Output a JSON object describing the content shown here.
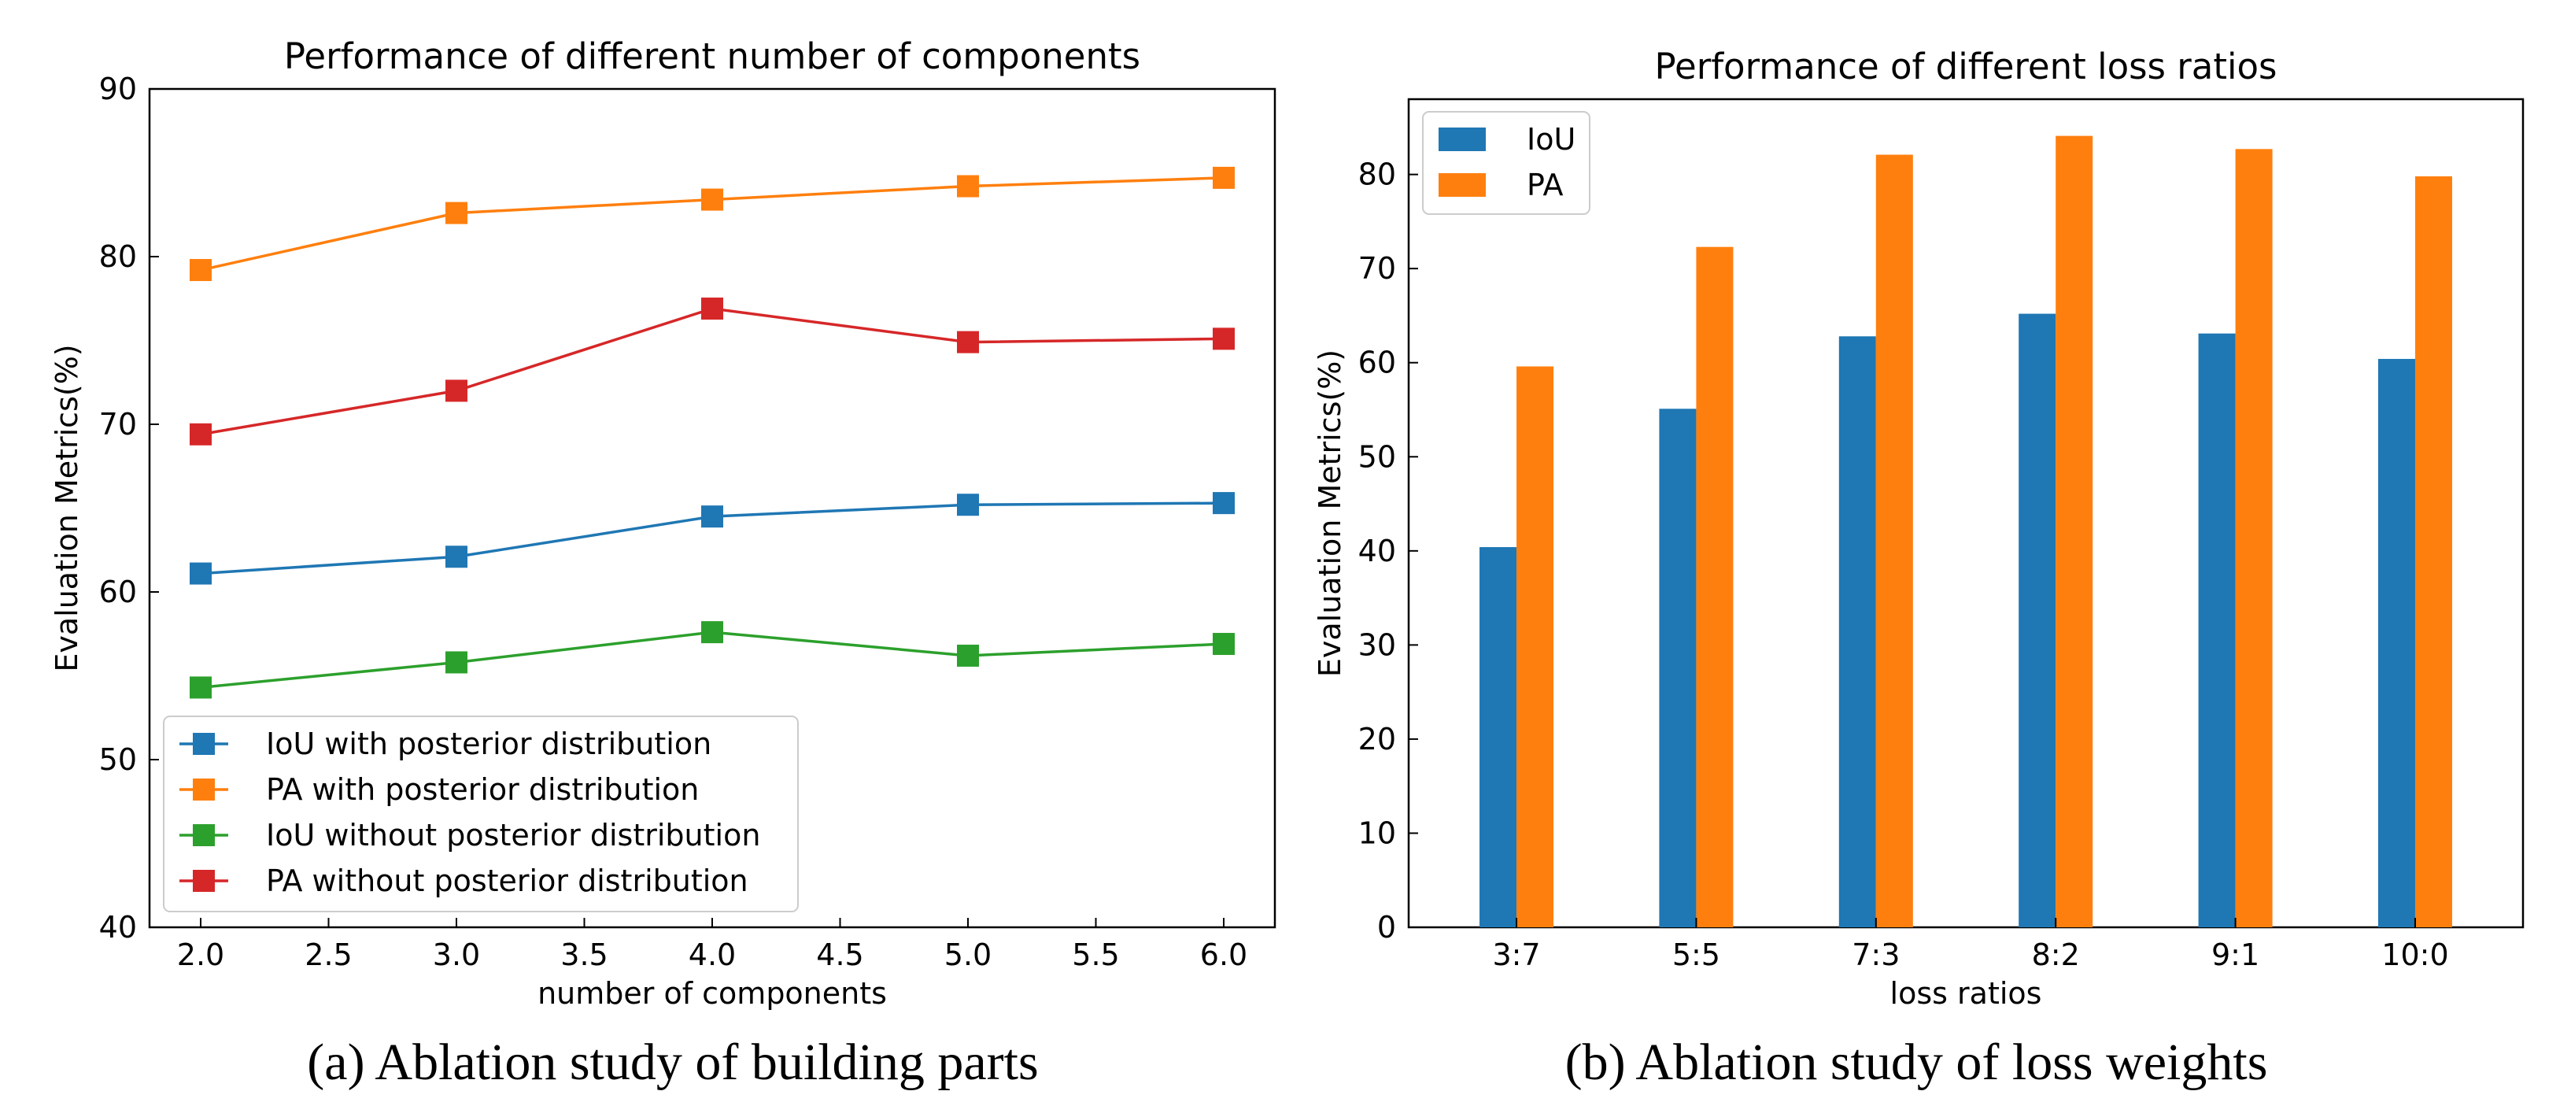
{
  "captions": {
    "a": "(a) Ablation study of building parts",
    "b": "(b) Ablation study of loss weights"
  },
  "chart_data": [
    {
      "type": "line",
      "title": "Performance of different number of components",
      "xlabel": "number of components",
      "ylabel": "Evaluation Metrics(%)",
      "xlim": [
        1.8,
        6.2
      ],
      "ylim": [
        40,
        90
      ],
      "xticks": [
        "2.0",
        "2.5",
        "3.0",
        "3.5",
        "4.0",
        "4.5",
        "5.0",
        "5.5",
        "6.0"
      ],
      "yticks": [
        "40",
        "50",
        "60",
        "70",
        "80",
        "90"
      ],
      "grid": false,
      "legend_position": "lower-left",
      "x": [
        2,
        3,
        4,
        5,
        6
      ],
      "series": [
        {
          "name": "IoU with posterior distribution",
          "color": "#1f77b4",
          "marker": "square",
          "values": [
            61.1,
            62.1,
            64.5,
            65.2,
            65.3
          ]
        },
        {
          "name": "PA with posterior distribution",
          "color": "#ff7f0e",
          "marker": "square",
          "values": [
            79.2,
            82.6,
            83.4,
            84.2,
            84.7
          ]
        },
        {
          "name": "IoU without posterior distribution",
          "color": "#2ca02c",
          "marker": "square",
          "values": [
            54.3,
            55.8,
            57.6,
            56.2,
            56.9
          ]
        },
        {
          "name": "PA without posterior distribution",
          "color": "#d62728",
          "marker": "square",
          "values": [
            69.4,
            72.0,
            76.9,
            74.9,
            75.1
          ]
        }
      ]
    },
    {
      "type": "bar",
      "title": "Performance of different loss ratios",
      "xlabel": "loss ratios",
      "ylabel": "Evaluation Metrics(%)",
      "ylim": [
        0,
        88
      ],
      "yticks": [
        "0",
        "10",
        "20",
        "30",
        "40",
        "50",
        "60",
        "70",
        "80"
      ],
      "grid": false,
      "legend_position": "top-left",
      "categories": [
        "3:7",
        "5:5",
        "7:3",
        "8:2",
        "9:1",
        "10:0"
      ],
      "series": [
        {
          "name": "IoU",
          "color": "#1f77b4",
          "values": [
            40.4,
            55.1,
            62.8,
            65.2,
            63.1,
            60.4
          ]
        },
        {
          "name": "PA",
          "color": "#ff7f0e",
          "values": [
            59.6,
            72.3,
            82.1,
            84.1,
            82.7,
            79.8
          ]
        }
      ]
    }
  ]
}
